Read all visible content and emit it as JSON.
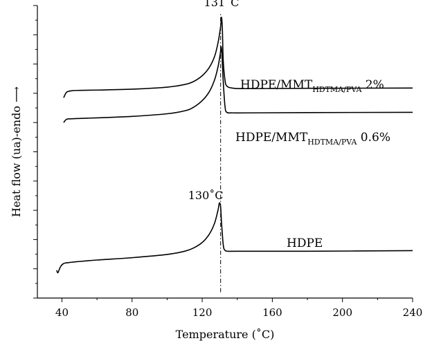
{
  "chart_data": {
    "type": "line",
    "xlabel": "Temperature (˚C)",
    "ylabel": "Heat flow (ua)-endo ⟶",
    "xlim": [
      26,
      240
    ],
    "ylim": [
      0,
      10
    ],
    "xticks": [
      40,
      80,
      120,
      160,
      200,
      240
    ],
    "xtick_labels": [
      "40",
      "80",
      "120",
      "160",
      "200",
      "240"
    ],
    "y_tick_labels_shown": false,
    "grid": false,
    "series": [
      {
        "name": "HDPE/MMT<sub>HDTMA/PVA</sub> 2%",
        "label_main": "HDPE/MMT",
        "label_sub": "HDTMA/PVA",
        "label_suffix": " 2%",
        "color": "#000000",
        "x": [
          41,
          42,
          43,
          46,
          50,
          60,
          80,
          100,
          110,
          115,
          120,
          124,
          127,
          129,
          130.5,
          131,
          131.5,
          132,
          133,
          134,
          137,
          145,
          180,
          240
        ],
        "y": [
          6.85,
          6.98,
          7.05,
          7.09,
          7.1,
          7.11,
          7.14,
          7.21,
          7.3,
          7.4,
          7.6,
          7.88,
          8.25,
          8.72,
          9.28,
          9.6,
          9.2,
          8.1,
          7.45,
          7.25,
          7.18,
          7.16,
          7.17,
          7.18
        ]
      },
      {
        "name": "HDPE/MMT<sub>HDTMA/PVA</sub> 0.6%",
        "label_main": "HDPE/MMT",
        "label_sub": "HDTMA/PVA",
        "label_suffix": " 0.6%",
        "color": "#000000",
        "x": [
          41,
          42,
          43,
          46,
          50,
          60,
          80,
          100,
          110,
          115,
          120,
          124,
          127,
          129,
          130.3,
          130.8,
          131.3,
          132,
          133,
          134,
          137,
          145,
          180,
          240
        ],
        "y": [
          6.0,
          6.08,
          6.12,
          6.13,
          6.14,
          6.16,
          6.21,
          6.3,
          6.4,
          6.52,
          6.75,
          7.05,
          7.45,
          7.9,
          8.35,
          8.6,
          8.3,
          7.4,
          6.55,
          6.35,
          6.33,
          6.33,
          6.34,
          6.35
        ]
      },
      {
        "name": "HDPE",
        "label_main": "HDPE",
        "color": "#000000",
        "x": [
          37,
          37.6,
          38.3,
          39.3,
          41,
          45,
          60,
          80,
          100,
          110,
          115,
          120,
          124,
          127,
          129,
          129.8,
          130.5,
          131,
          132,
          133,
          135,
          140,
          180,
          240
        ],
        "y": [
          0.95,
          0.86,
          0.95,
          1.08,
          1.18,
          1.22,
          1.3,
          1.38,
          1.49,
          1.6,
          1.71,
          1.9,
          2.18,
          2.55,
          3.0,
          3.25,
          3.12,
          2.6,
          1.82,
          1.63,
          1.6,
          1.6,
          1.6,
          1.62
        ]
      }
    ],
    "annotations": [
      {
        "text": "131˚C",
        "x": 131,
        "y": 9.98
      },
      {
        "text": "130˚C",
        "x": 122,
        "y": 3.38
      }
    ],
    "reference_lines": [
      {
        "type": "vertical",
        "x": 130.5,
        "style": "dash-dot",
        "from_y": 0.2,
        "to_y": 9.75
      }
    ]
  }
}
